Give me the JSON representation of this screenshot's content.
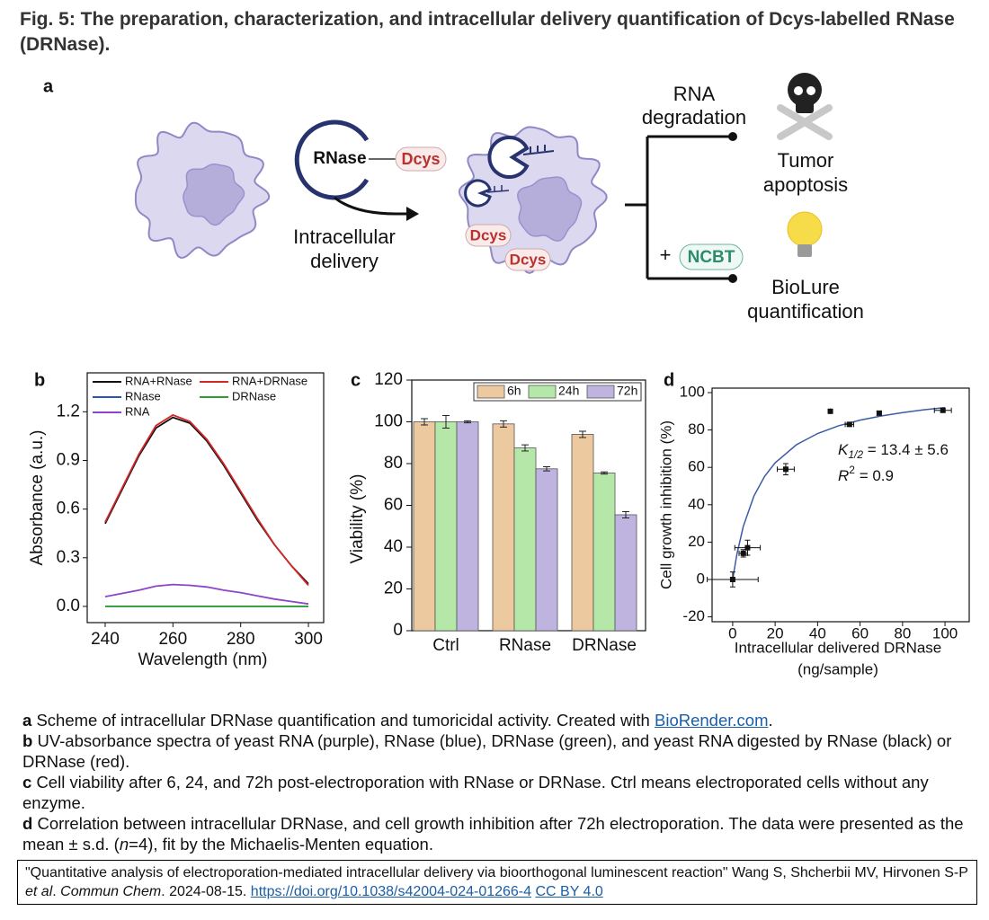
{
  "title": "Fig. 5: The preparation, characterization, and intracellular delivery quantification of Dcys-labelled RNase (DRNase).",
  "diagram": {
    "panel": "a",
    "rnase": "RNase",
    "dcys": "Dcys",
    "delivery": [
      "Intracellular",
      "delivery"
    ],
    "degradation": [
      "RNA",
      "degradation"
    ],
    "apoptosis": [
      "Tumor",
      "apoptosis"
    ],
    "plus": "+",
    "ncbt": "NCBT",
    "biolure": [
      "BioLure",
      "quantification"
    ]
  },
  "chart_data": [
    {
      "type": "line",
      "panel": "b",
      "xlabel": "Wavelength (nm)",
      "ylabel": "Absorbance (a.u.)",
      "x": [
        240,
        245,
        250,
        255,
        260,
        265,
        270,
        275,
        280,
        285,
        290,
        295,
        300
      ],
      "series": [
        {
          "name": "RNA+RNase",
          "color": "#111111",
          "values": [
            0.51,
            0.72,
            0.93,
            1.1,
            1.165,
            1.13,
            1.02,
            0.87,
            0.7,
            0.53,
            0.38,
            0.25,
            0.14
          ]
        },
        {
          "name": "RNA+DRNase",
          "color": "#d62728",
          "values": [
            0.52,
            0.73,
            0.94,
            1.115,
            1.18,
            1.14,
            1.03,
            0.88,
            0.71,
            0.54,
            0.38,
            0.25,
            0.13
          ]
        },
        {
          "name": "RNase",
          "color": "#2a52be",
          "values": [
            0,
            0,
            0,
            0,
            0,
            0,
            0,
            0,
            0,
            0,
            0,
            0,
            0
          ]
        },
        {
          "name": "DRNase",
          "color": "#2ca02c",
          "values": [
            0,
            0,
            0,
            0,
            0,
            0,
            0,
            0,
            0,
            0,
            0,
            0,
            0
          ]
        },
        {
          "name": "RNA",
          "color": "#8e44c9",
          "values": [
            0.06,
            0.08,
            0.1,
            0.125,
            0.135,
            0.13,
            0.12,
            0.1,
            0.085,
            0.065,
            0.045,
            0.03,
            0.015
          ]
        }
      ],
      "xlim": [
        234.7,
        304.5
      ],
      "ylim": [
        -0.1,
        1.44
      ],
      "xticks": [
        240,
        260,
        280,
        300
      ],
      "yticks": [
        {
          "value": 0,
          "label": "0.0"
        },
        0.3,
        0.6,
        0.9,
        1.2
      ]
    },
    {
      "type": "bar",
      "panel": "c",
      "ylabel": "Viability (%)",
      "categories": [
        "Ctrl",
        "RNase",
        "DRNase"
      ],
      "series": [
        {
          "name": "6h",
          "color": "#edc9a0",
          "values": [
            100,
            99,
            94
          ],
          "errors": [
            1.5,
            1.5,
            1.5
          ]
        },
        {
          "name": "24h",
          "color": "#b5e8a8",
          "values": [
            100,
            87.5,
            75.5
          ],
          "errors": [
            3,
            1.5,
            0.5
          ]
        },
        {
          "name": "72h",
          "color": "#bfb3df",
          "values": [
            100,
            77.5,
            55.5
          ],
          "errors": [
            0.5,
            1,
            1.5
          ]
        }
      ],
      "ylim": [
        0,
        120
      ],
      "yticks": [
        0,
        20,
        40,
        60,
        80,
        100,
        120
      ]
    },
    {
      "type": "scatter",
      "panel": "d",
      "xlabel": [
        "Intracellular delivered DRNase",
        "(ng/sample)"
      ],
      "ylabel": "Cell growth inhibition (%)",
      "points": {
        "x": [
          0,
          5,
          7,
          25,
          46,
          55,
          69,
          99
        ],
        "y": [
          0,
          14,
          17,
          59,
          90,
          83,
          89,
          90.5
        ],
        "xerr": [
          12,
          2,
          6,
          4,
          0,
          2,
          1,
          4
        ],
        "yerr": [
          4,
          2,
          4,
          3,
          0,
          1,
          1,
          1
        ],
        "color": "#111111"
      },
      "fit": {
        "x": [
          0,
          2,
          5,
          10,
          15,
          20,
          30,
          40,
          50,
          60,
          70,
          80,
          90,
          100
        ],
        "y": [
          0,
          13.5,
          28.4,
          44.6,
          55.1,
          62.4,
          72.1,
          78.1,
          82.3,
          85.3,
          87.5,
          89.3,
          90.8,
          92
        ],
        "color": "#3b5ba5"
      },
      "annotations": [
        {
          "symbol": "K",
          "sub": "1/2",
          "text": " = 13.4 ± 5.6"
        },
        {
          "symbol": "R",
          "sup": "2",
          "text": " =  0.9"
        }
      ],
      "xlim": [
        -9.7,
        111.4
      ],
      "ylim": [
        -22.6,
        102.4
      ],
      "xticks": [
        0,
        20,
        40,
        60,
        80,
        100
      ],
      "yticks": [
        -20,
        0,
        20,
        40,
        60,
        80,
        100
      ]
    }
  ],
  "caption": [
    {
      "label": "a",
      "parts": [
        "Scheme of intracellular DRNase quantification and tumoricidal activity. Created with ",
        "BioRender.com",
        "."
      ]
    },
    {
      "label": "b",
      "parts": [
        "UV-absorbance spectra of yeast RNA (purple), RNase (blue), DRNase (green), and yeast RNA digested by RNase (black) or DRNase (red)."
      ]
    },
    {
      "label": "c",
      "parts": [
        "Cell viability after 6, 24, and 72h post-electroporation with RNase or DRNase. Ctrl means electroporated cells without any enzyme."
      ]
    },
    {
      "label": "d",
      "parts": [
        "Correlation between intracellular DRNase, and cell growth inhibition after 72h electroporation. The data were presented as the mean ± s.d. (",
        "n",
        "=4), fit by the Michaelis-Menten equation."
      ]
    }
  ],
  "citation": [
    "\"Quantitative analysis of electroporation-mediated intracellular delivery via bioorthogonal luminescent reaction\" Wang S, Shcherbii MV, Hirvonen S-P ",
    "et al",
    ". ",
    "Commun Chem",
    ". 2024-08-15. ",
    "https://doi.org/10.1038/s42004-024-01266-4",
    "CC BY 4.0"
  ]
}
